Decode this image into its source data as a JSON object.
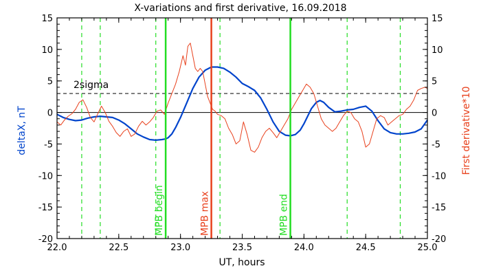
{
  "chart_data": {
    "type": "line",
    "title": "X-variations and first derivative, 16.09.2018",
    "xlabel": "UT, hours",
    "ylabel_left": "deltaX, nT",
    "ylabel_right": "First derivative*10",
    "xlim": [
      22.0,
      25.0
    ],
    "ylim": [
      -20,
      15
    ],
    "x_ticks": [
      22.0,
      22.5,
      23.0,
      23.5,
      24.0,
      24.5,
      25.0
    ],
    "x_tick_labels": [
      "22.0",
      "22.5",
      "23.0",
      "23.5",
      "24.0",
      "24.5",
      "25.0"
    ],
    "y_ticks": [
      15,
      10,
      5,
      0,
      -5,
      -10,
      -15,
      -20
    ],
    "y_tick_labels": [
      "15",
      "10",
      "5",
      "0",
      "-5",
      "-10",
      "-15",
      "-20"
    ],
    "grid": false,
    "colors": {
      "deltaX": "#0044cc",
      "derivative": "#e8401c",
      "mpb_boundary": "#22dd22",
      "mpb_max": "#e8401c",
      "sigma": "#000000",
      "dashed_markers": "#22dd22"
    },
    "sigma_level": 3,
    "sigma_label": "2sigma",
    "vertical_markers": [
      {
        "x": 22.88,
        "label": "MPB begin",
        "color": "#22dd22"
      },
      {
        "x": 23.25,
        "label": "MPB max",
        "color": "#e8401c"
      },
      {
        "x": 23.89,
        "label": "MPB end",
        "color": "#22dd22"
      }
    ],
    "dashed_markers": [
      22.2,
      22.35,
      22.8,
      23.32,
      24.35,
      24.78
    ],
    "series": [
      {
        "key": "deltaX",
        "color": "#0044cc",
        "x": [
          22.0,
          22.05,
          22.1,
          22.15,
          22.2,
          22.25,
          22.3,
          22.35,
          22.4,
          22.45,
          22.5,
          22.55,
          22.6,
          22.65,
          22.7,
          22.75,
          22.8,
          22.85,
          22.88,
          22.9,
          22.93,
          22.96,
          23.0,
          23.05,
          23.1,
          23.15,
          23.2,
          23.25,
          23.3,
          23.35,
          23.4,
          23.45,
          23.5,
          23.55,
          23.6,
          23.65,
          23.7,
          23.75,
          23.8,
          23.85,
          23.89,
          23.93,
          23.97,
          24.0,
          24.03,
          24.06,
          24.1,
          24.13,
          24.16,
          24.2,
          24.25,
          24.3,
          24.35,
          24.4,
          24.45,
          24.5,
          24.55,
          24.6,
          24.65,
          24.7,
          24.75,
          24.8,
          24.85,
          24.9,
          24.95,
          25.0
        ],
        "y": [
          -0.3,
          -0.8,
          -1.1,
          -1.3,
          -1.2,
          -0.9,
          -0.7,
          -0.6,
          -0.7,
          -0.8,
          -1.2,
          -1.8,
          -2.6,
          -3.4,
          -3.9,
          -4.3,
          -4.4,
          -4.3,
          -4.2,
          -4.0,
          -3.4,
          -2.4,
          -0.8,
          1.5,
          3.8,
          5.6,
          6.7,
          7.2,
          7.2,
          7.0,
          6.4,
          5.6,
          4.6,
          4.1,
          3.5,
          2.3,
          0.5,
          -1.5,
          -3.0,
          -3.6,
          -3.7,
          -3.5,
          -2.8,
          -1.8,
          -0.6,
          0.6,
          1.6,
          1.9,
          1.6,
          0.8,
          0.1,
          0.2,
          0.4,
          0.5,
          0.8,
          1.0,
          0.2,
          -1.3,
          -2.6,
          -3.2,
          -3.4,
          -3.4,
          -3.3,
          -3.1,
          -2.6,
          -1.2
        ]
      },
      {
        "key": "derivative",
        "color": "#e8401c",
        "x": [
          22.0,
          22.03,
          22.06,
          22.09,
          22.12,
          22.15,
          22.18,
          22.21,
          22.24,
          22.27,
          22.3,
          22.33,
          22.36,
          22.39,
          22.42,
          22.45,
          22.48,
          22.51,
          22.54,
          22.57,
          22.6,
          22.63,
          22.66,
          22.69,
          22.72,
          22.75,
          22.78,
          22.81,
          22.84,
          22.87,
          22.9,
          22.93,
          22.96,
          22.99,
          23.02,
          23.04,
          23.06,
          23.08,
          23.1,
          23.12,
          23.14,
          23.16,
          23.18,
          23.2,
          23.22,
          23.24,
          23.26,
          23.28,
          23.3,
          23.33,
          23.36,
          23.39,
          23.42,
          23.45,
          23.48,
          23.51,
          23.54,
          23.57,
          23.6,
          23.63,
          23.66,
          23.69,
          23.72,
          23.75,
          23.78,
          23.81,
          23.84,
          23.87,
          23.9,
          23.93,
          23.96,
          23.99,
          24.02,
          24.05,
          24.08,
          24.11,
          24.14,
          24.17,
          24.2,
          24.23,
          24.26,
          24.29,
          24.32,
          24.35,
          24.38,
          24.41,
          24.44,
          24.47,
          24.5,
          24.53,
          24.56,
          24.59,
          24.62,
          24.65,
          24.68,
          24.71,
          24.74,
          24.77,
          24.8,
          24.83,
          24.86,
          24.89,
          24.92,
          24.95,
          24.98,
          25.0
        ],
        "y": [
          -1.5,
          -2.0,
          -1.2,
          -0.6,
          -0.2,
          0.5,
          1.6,
          2.0,
          0.8,
          -0.8,
          -1.5,
          -0.2,
          1.0,
          0.0,
          -1.4,
          -2.2,
          -3.2,
          -3.8,
          -3.0,
          -2.6,
          -3.8,
          -3.4,
          -2.2,
          -1.4,
          -2.0,
          -1.5,
          -0.8,
          0.2,
          0.4,
          -0.3,
          1.5,
          3.0,
          4.5,
          6.5,
          9.0,
          7.5,
          10.5,
          11.0,
          9.0,
          7.0,
          6.5,
          7.0,
          6.5,
          4.5,
          2.5,
          1.5,
          0.5,
          0.2,
          -0.3,
          -0.5,
          -1.0,
          -2.5,
          -3.5,
          -5.0,
          -4.5,
          -1.5,
          -3.5,
          -6.0,
          -6.3,
          -5.5,
          -4.0,
          -3.0,
          -2.5,
          -3.2,
          -4.0,
          -3.0,
          -2.0,
          -1.0,
          0.5,
          1.5,
          2.5,
          3.5,
          4.5,
          4.0,
          3.0,
          1.0,
          -1.0,
          -2.0,
          -2.5,
          -3.0,
          -2.5,
          -1.5,
          -0.5,
          0.2,
          0.0,
          -1.0,
          -1.5,
          -3.0,
          -5.5,
          -5.0,
          -3.0,
          -1.0,
          -0.5,
          -0.8,
          -2.0,
          -1.5,
          -1.0,
          -0.5,
          -0.3,
          0.5,
          1.0,
          2.0,
          3.5,
          3.8,
          4.0,
          3.8
        ]
      }
    ]
  }
}
